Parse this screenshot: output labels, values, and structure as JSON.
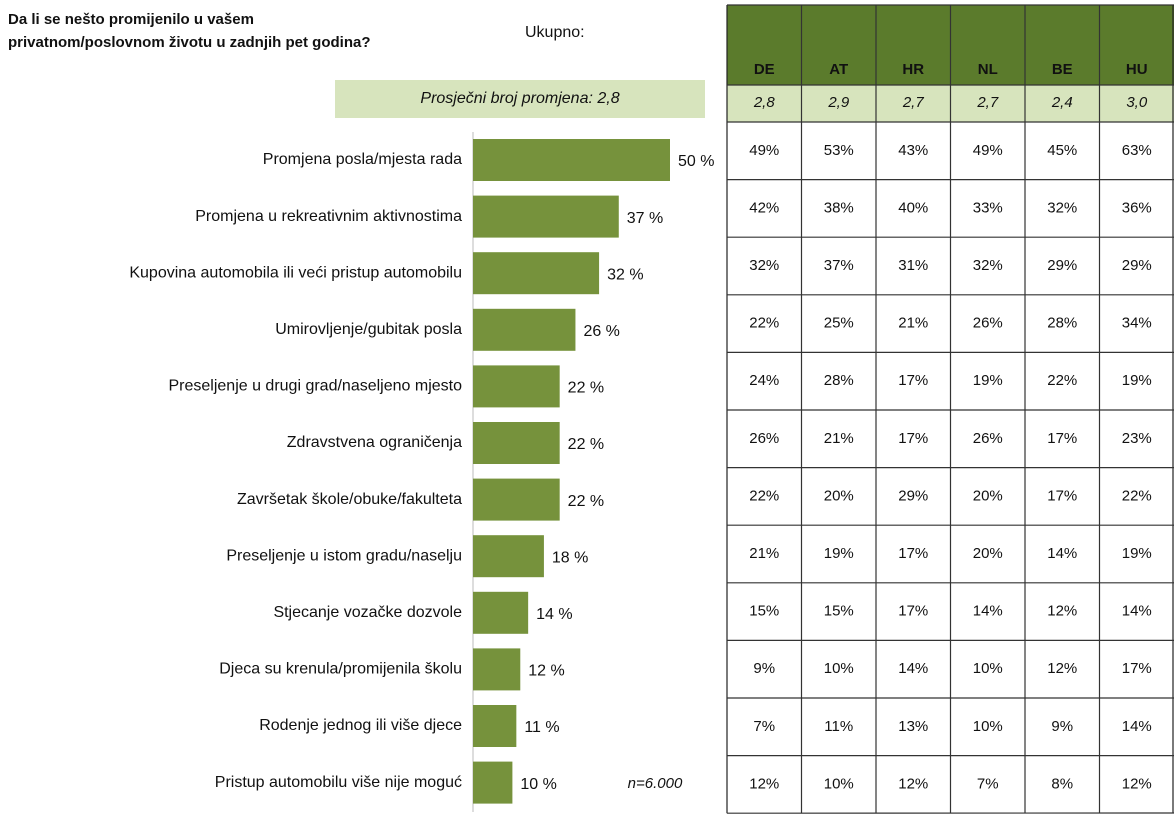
{
  "chart_data": {
    "type": "bar",
    "orientation": "horizontal",
    "title": [
      "Da li se nešto promijenilo u vašem",
      "privatnom/poslovnom životu u zadnjih pet godina?"
    ],
    "total_label": "Ukupno:",
    "average": "Prosječni broj promjena: 2,8",
    "note": "n=6.000",
    "color": "#76923c",
    "categories": [
      "Promjena posla/mjesta rada",
      "Promjena u rekreativnim aktivnostima",
      "Kupovina automobila ili veći pristup automobilu",
      "Umirovljenje/gubitak posla",
      "Preseljenje u drugi grad/naseljeno mjesto",
      "Zdravstvena ograničenja",
      "Završetak škole/obuke/fakulteta",
      "Preseljenje u istom gradu/naselju",
      "Stjecanje vozačke dozvole",
      "Djeca su krenula/promijenila školu",
      "Rodenje jednog ili više djece",
      "Pristup automobilu više nije moguć"
    ],
    "values": [
      50,
      37,
      32,
      26,
      22,
      22,
      22,
      18,
      14,
      12,
      11,
      10
    ],
    "value_labels": [
      "50 %",
      "37 %",
      "32 %",
      "26 %",
      "22 %",
      "22 %",
      "22 %",
      "18 %",
      "14 %",
      "12 %",
      "11 %",
      "10 %"
    ]
  },
  "table": {
    "header": [
      "DE",
      "AT",
      "HR",
      "NL",
      "BE",
      "HU"
    ],
    "averages": [
      "2,8",
      "2,9",
      "2,7",
      "2,7",
      "2,4",
      "3,0"
    ],
    "rows": [
      [
        "49%",
        "53%",
        "43%",
        "49%",
        "45%",
        "63%"
      ],
      [
        "42%",
        "38%",
        "40%",
        "33%",
        "32%",
        "36%"
      ],
      [
        "32%",
        "37%",
        "31%",
        "32%",
        "29%",
        "29%"
      ],
      [
        "22%",
        "25%",
        "21%",
        "26%",
        "28%",
        "34%"
      ],
      [
        "24%",
        "28%",
        "17%",
        "19%",
        "22%",
        "19%"
      ],
      [
        "26%",
        "21%",
        "17%",
        "26%",
        "17%",
        "23%"
      ],
      [
        "22%",
        "20%",
        "29%",
        "20%",
        "17%",
        "22%"
      ],
      [
        "21%",
        "19%",
        "17%",
        "20%",
        "14%",
        "19%"
      ],
      [
        "15%",
        "15%",
        "17%",
        "14%",
        "12%",
        "14%"
      ],
      [
        "9%",
        "10%",
        "14%",
        "10%",
        "12%",
        "17%"
      ],
      [
        "7%",
        "11%",
        "13%",
        "10%",
        "9%",
        "14%"
      ],
      [
        "12%",
        "10%",
        "12%",
        "7%",
        "8%",
        "12%"
      ]
    ]
  }
}
